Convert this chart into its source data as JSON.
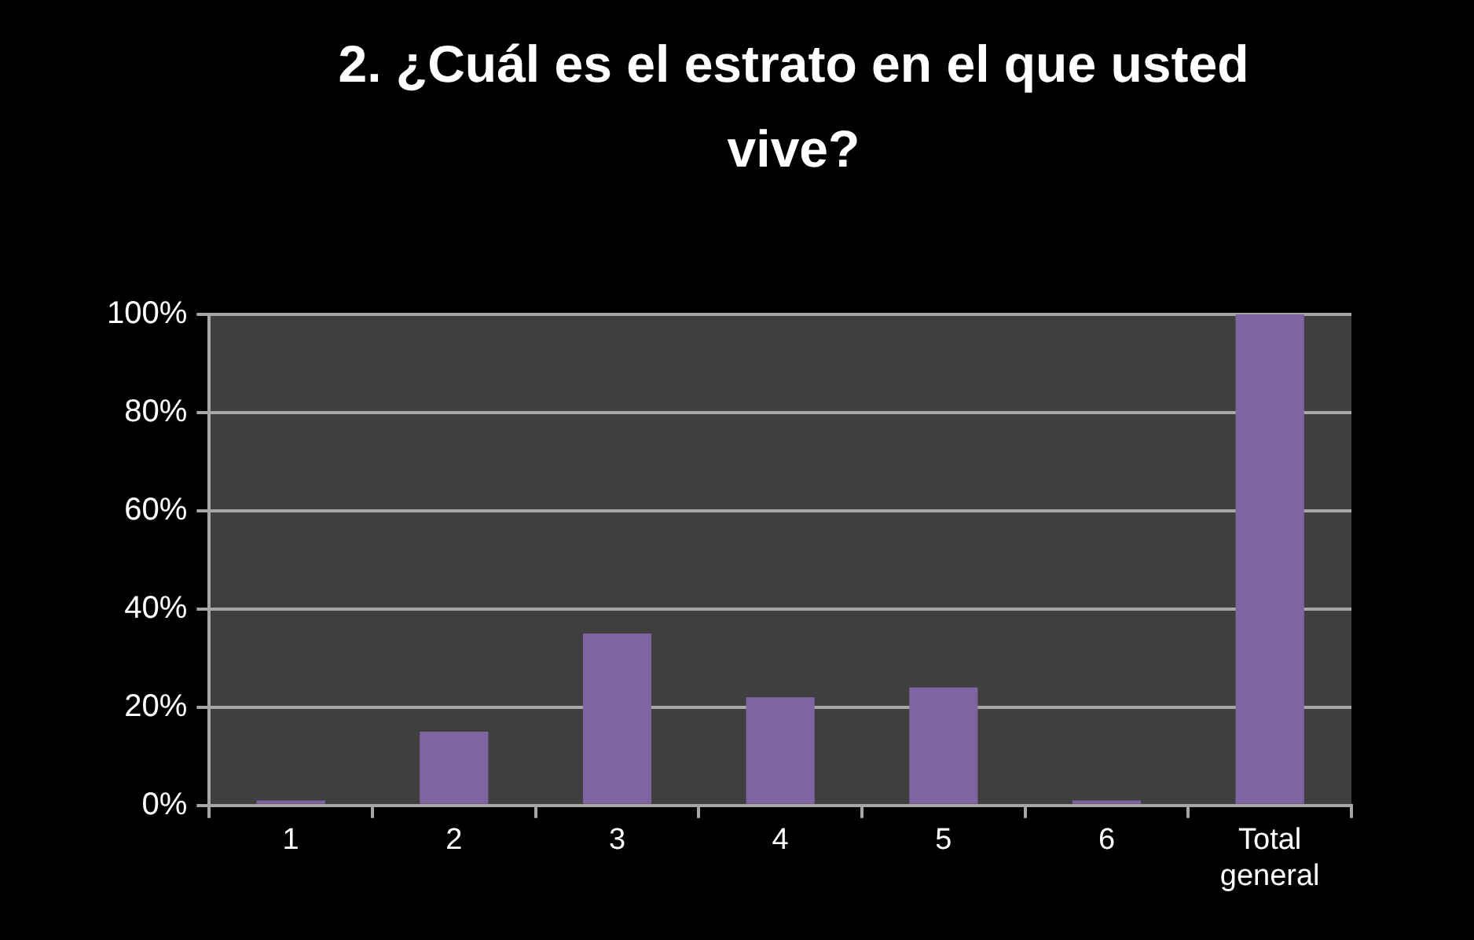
{
  "chart_data": {
    "type": "bar",
    "title": "2. ¿Cuál es el estrato en el que usted vive?",
    "categories": [
      "1",
      "2",
      "3",
      "4",
      "5",
      "6",
      "Total general"
    ],
    "values": [
      1,
      15,
      35,
      22,
      24,
      1,
      100
    ],
    "color": "#8064a2",
    "ylim": [
      0,
      100
    ],
    "yticks": [
      {
        "value": 0,
        "label": "0%"
      },
      {
        "value": 20,
        "label": "20%"
      },
      {
        "value": 40,
        "label": "40%"
      },
      {
        "value": 60,
        "label": "60%"
      },
      {
        "value": 80,
        "label": "80%"
      },
      {
        "value": 100,
        "label": "100%"
      }
    ],
    "grid": "y"
  }
}
